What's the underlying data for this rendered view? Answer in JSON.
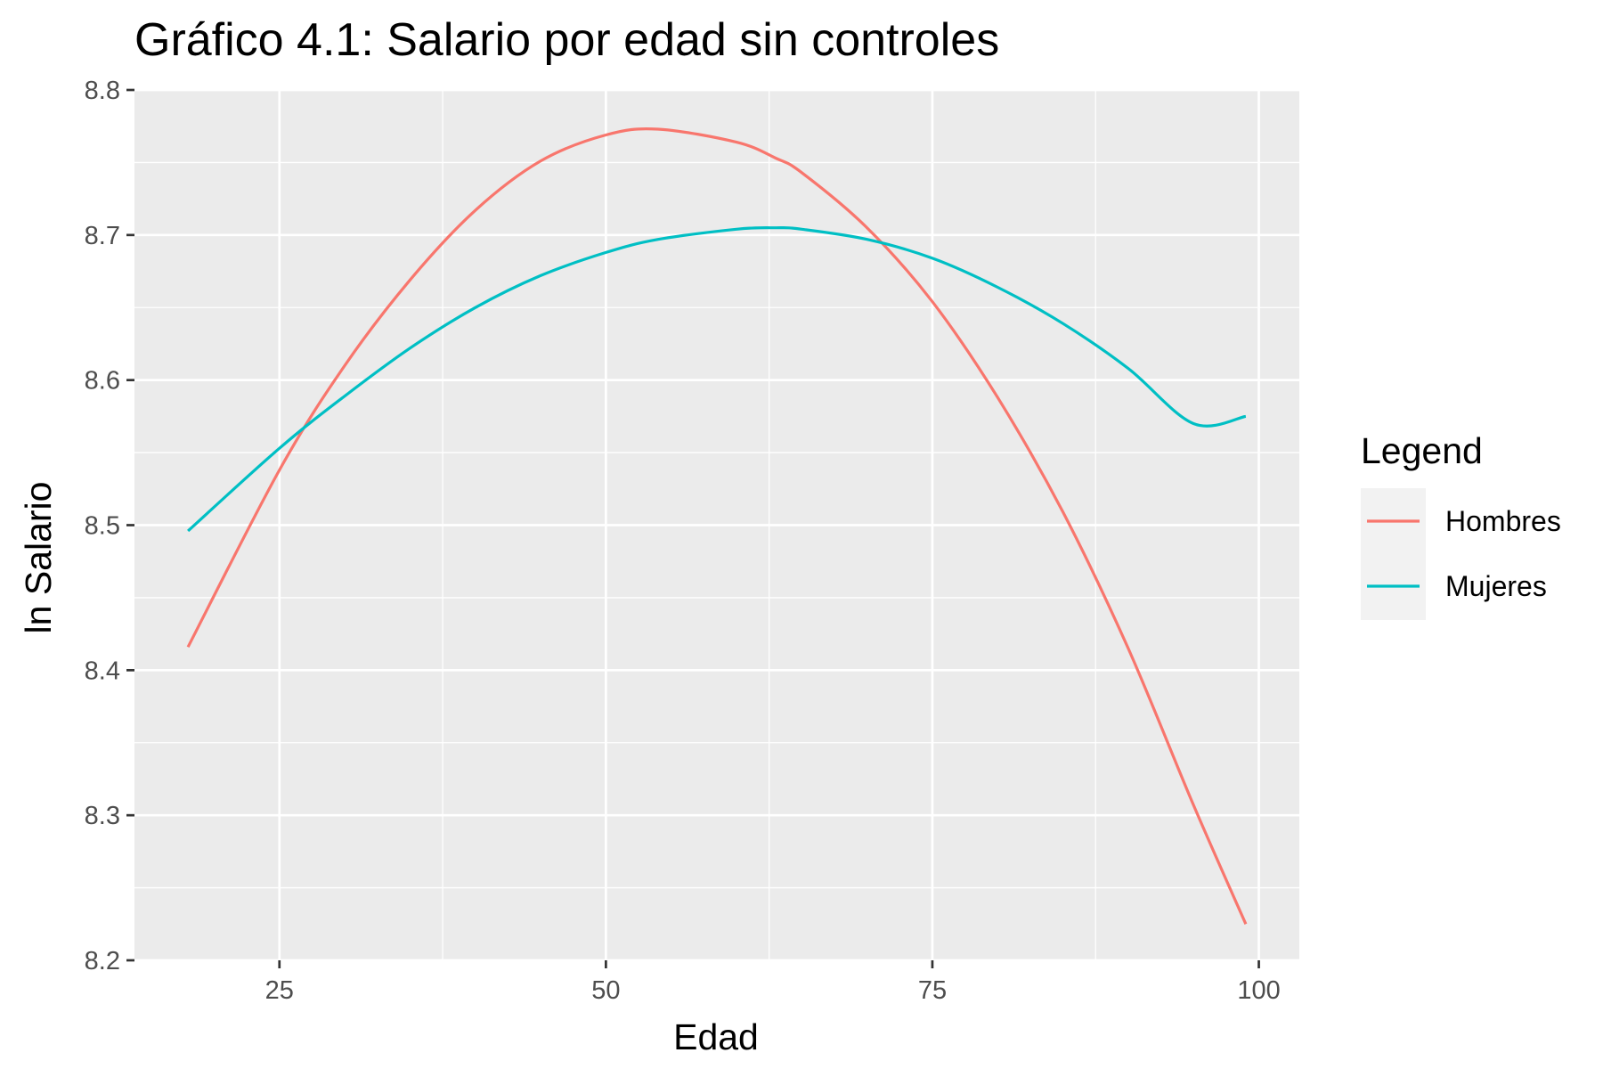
{
  "chart_data": {
    "type": "line",
    "title": "Gráfico 4.1: Salario por edad sin controles",
    "xlabel": "Edad",
    "ylabel": "ln Salario",
    "xlim": [
      13.9,
      103.1
    ],
    "ylim": [
      8.2,
      8.8
    ],
    "xticks": [
      25,
      50,
      75,
      100
    ],
    "yticks": [
      8.2,
      8.3,
      8.4,
      8.5,
      8.6,
      8.7,
      8.8
    ],
    "x_tick_labels": [
      "25",
      "50",
      "75",
      "100"
    ],
    "y_tick_labels": [
      "8.2",
      "8.3",
      "8.4",
      "8.5",
      "8.6",
      "8.7",
      "8.8"
    ],
    "grid": true,
    "background": "#ebebeb",
    "legend": {
      "title": "Legend",
      "position": "right",
      "entries": [
        "Hombres",
        "Mujeres"
      ]
    },
    "x": [
      18,
      25,
      30,
      35,
      40,
      45,
      50,
      54,
      60,
      63,
      65,
      70,
      75,
      80,
      85,
      90,
      95,
      99
    ],
    "series": [
      {
        "name": "Hombres",
        "color": "#f8766d",
        "values": [
          8.416,
          8.538,
          8.61,
          8.669,
          8.717,
          8.751,
          8.769,
          8.773,
          8.764,
          8.753,
          8.743,
          8.705,
          8.654,
          8.588,
          8.509,
          8.415,
          8.307,
          8.225
        ]
      },
      {
        "name": "Mujeres",
        "color": "#00bfc4",
        "values": [
          8.496,
          8.553,
          8.589,
          8.622,
          8.65,
          8.672,
          8.688,
          8.697,
          8.704,
          8.705,
          8.704,
          8.697,
          8.684,
          8.664,
          8.639,
          8.608,
          8.57,
          8.575
        ]
      }
    ]
  }
}
